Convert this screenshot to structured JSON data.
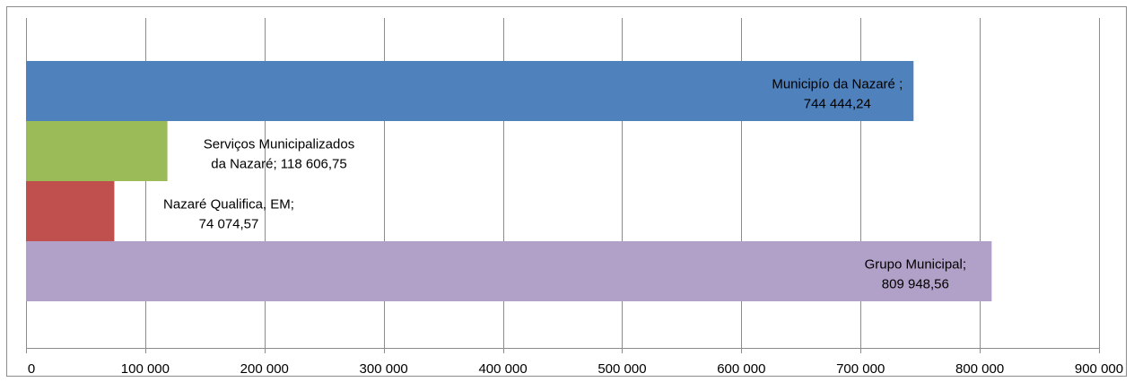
{
  "chart_data": {
    "type": "bar",
    "orientation": "horizontal",
    "grid": true,
    "xlim": [
      0,
      900000
    ],
    "x_ticks": [
      0,
      100000,
      200000,
      300000,
      400000,
      500000,
      600000,
      700000,
      800000,
      900000
    ],
    "x_tick_labels": [
      "0",
      "100 000",
      "200 000",
      "300 000",
      "400 000",
      "500 000",
      "600 000",
      "700 000",
      "800 000",
      "900 000"
    ],
    "categories": [
      "Municipío da Nazaré",
      "Serviços Municipalizados da Nazaré",
      "Nazaré Qualifica, EM",
      "Grupo Municipal"
    ],
    "values": [
      744444.24,
      118606.75,
      74074.57,
      809948.56
    ],
    "colors": [
      "#4f81bd",
      "#9bbb59",
      "#c0504d",
      "#b1a0c7"
    ],
    "data_labels": [
      [
        "Municipío da Nazaré ;",
        "744 444,24"
      ],
      [
        "Serviços Municipalizados",
        "da Nazaré; 118 606,75"
      ],
      [
        "Nazaré Qualifica, EM;",
        "74 074,57"
      ],
      [
        "Grupo Municipal;",
        "809 948,56"
      ]
    ]
  }
}
